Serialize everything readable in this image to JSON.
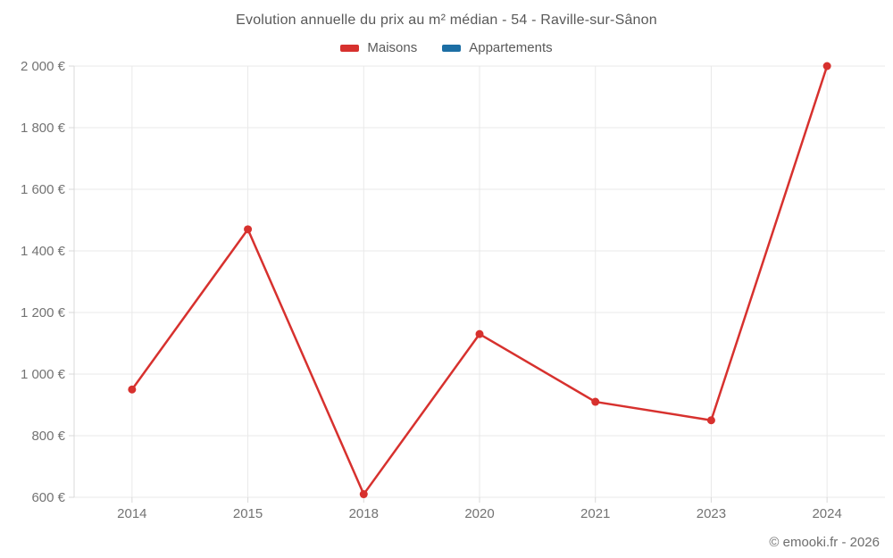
{
  "title": "Evolution annuelle du prix au m² médian - 54 - Raville-sur-Sânon",
  "legend": {
    "items": [
      {
        "label": "Maisons",
        "color": "#d7312e"
      },
      {
        "label": "Appartements",
        "color": "#1c6ea4"
      }
    ]
  },
  "copyright": "© emooki.fr - 2026",
  "colors": {
    "maisons": "#d7312e",
    "appartements": "#1c6ea4",
    "gridline": "#e9e9e9",
    "axis_border": "#d9d9d9",
    "tick_text": "#737373"
  },
  "chart_data": {
    "type": "line",
    "title": "Evolution annuelle du prix au m² médian - 54 - Raville-sur-Sânon",
    "categories": [
      "2014",
      "2015",
      "2018",
      "2020",
      "2021",
      "2023",
      "2024"
    ],
    "series": [
      {
        "name": "Maisons",
        "color": "#d7312e",
        "values": [
          950,
          1470,
          610,
          1130,
          910,
          850,
          2000
        ]
      },
      {
        "name": "Appartements",
        "color": "#1c6ea4",
        "values": []
      }
    ],
    "xlabel": "",
    "ylabel": "",
    "ylim": [
      600,
      2000
    ],
    "ytick_step": 200,
    "yticks": [
      600,
      800,
      1000,
      1200,
      1400,
      1600,
      1800,
      2000
    ],
    "ytick_labels": [
      "600 €",
      "800 €",
      "1 000 €",
      "1 200 €",
      "1 400 €",
      "1 600 €",
      "1 800 €",
      "2 000 €"
    ],
    "grid": true,
    "legend_position": "top"
  }
}
